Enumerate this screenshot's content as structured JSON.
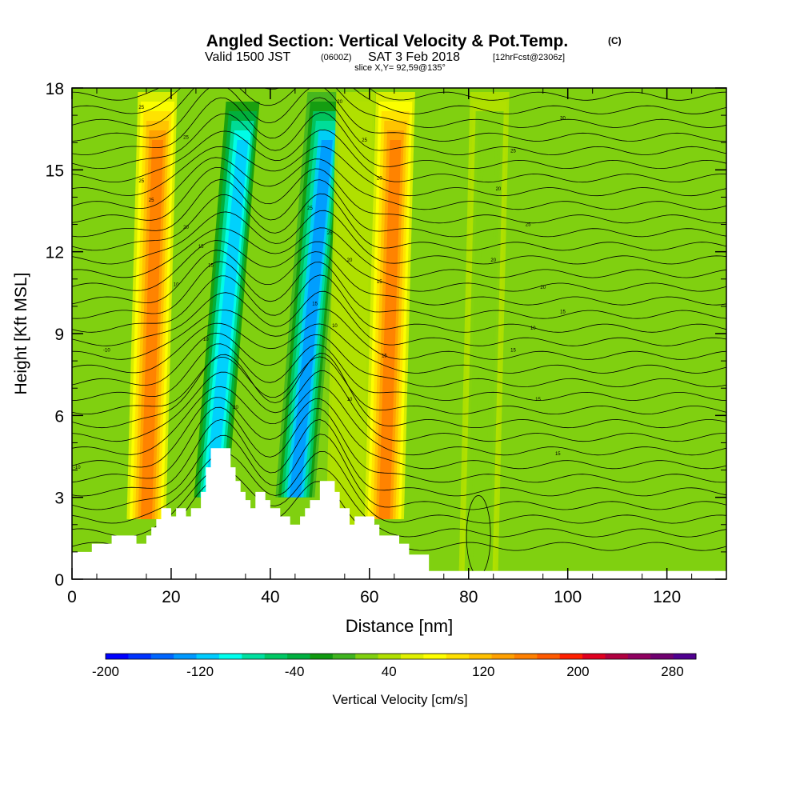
{
  "header": {
    "title": "Angled Section: Vertical Velocity & Pot.Temp.",
    "title_tag": "(C)",
    "valid_a": "Valid 1500 JST",
    "valid_b": "(0600Z)",
    "valid_c": "SAT 3 Feb 2018",
    "valid_d": "[12hrFcst@2306z]",
    "slice": "slice X,Y= 92,59@135°"
  },
  "chart_data": {
    "type": "heatmap",
    "title": "Angled Section: Vertical Velocity & Pot.Temp.",
    "xlabel": "Distance [nm]",
    "ylabel": "Height [Kft MSL]",
    "xlim": [
      0,
      132
    ],
    "ylim": [
      0,
      18
    ],
    "x_ticks": [
      "0",
      "20",
      "40",
      "60",
      "80",
      "100",
      "120"
    ],
    "y_ticks": [
      "0",
      "3",
      "6",
      "9",
      "12",
      "15",
      "18"
    ],
    "colorbar": {
      "label": "Vertical Velocity [cm/s]",
      "range": [
        -200,
        300
      ],
      "tick_labels": [
        "-200",
        "-120",
        "-40",
        "40",
        "120",
        "200",
        "280"
      ],
      "colors": [
        "#0000ff",
        "#0033ff",
        "#0066ff",
        "#0099ff",
        "#00ccff",
        "#00ffee",
        "#00e0a0",
        "#00c864",
        "#00b040",
        "#109a10",
        "#40b420",
        "#80d010",
        "#b0e000",
        "#e0f000",
        "#ffff00",
        "#ffe000",
        "#ffc000",
        "#ffa000",
        "#ff8000",
        "#ff5a00",
        "#ff2000",
        "#e00020",
        "#b00040",
        "#900060",
        "#700070",
        "#500090"
      ]
    },
    "velocity_bands": [
      {
        "x": 15,
        "peak_cm_s": 150
      },
      {
        "x": 28,
        "peak_cm_s": -120
      },
      {
        "x": 45,
        "peak_cm_s": -140
      },
      {
        "x": 55,
        "peak_cm_s": 40
      },
      {
        "x": 63,
        "peak_cm_s": 160
      },
      {
        "x": 82,
        "peak_cm_s": 20
      }
    ],
    "terrain_kft": [
      [
        0,
        1.0
      ],
      [
        4,
        1.3
      ],
      [
        8,
        1.6
      ],
      [
        13,
        1.3
      ],
      [
        15,
        1.6
      ],
      [
        16,
        1.9
      ],
      [
        17,
        2.2
      ],
      [
        18,
        2.6
      ],
      [
        20,
        2.3
      ],
      [
        21,
        2.6
      ],
      [
        23,
        2.3
      ],
      [
        24,
        2.6
      ],
      [
        26,
        3.2
      ],
      [
        27,
        4.1
      ],
      [
        28,
        4.8
      ],
      [
        31,
        4.8
      ],
      [
        32,
        4.1
      ],
      [
        33,
        3.6
      ],
      [
        34,
        3.2
      ],
      [
        35,
        2.9
      ],
      [
        36,
        2.6
      ],
      [
        37,
        3.2
      ],
      [
        38,
        3.2
      ],
      [
        39,
        2.9
      ],
      [
        40,
        2.6
      ],
      [
        42,
        2.3
      ],
      [
        44,
        2.0
      ],
      [
        46,
        2.3
      ],
      [
        47,
        2.6
      ],
      [
        48,
        2.9
      ],
      [
        50,
        3.6
      ],
      [
        53,
        3.2
      ],
      [
        54,
        2.6
      ],
      [
        56,
        2.0
      ],
      [
        57,
        2.3
      ],
      [
        60,
        2.3
      ],
      [
        61,
        2.0
      ],
      [
        62,
        1.6
      ],
      [
        66,
        1.3
      ],
      [
        68,
        0.9
      ],
      [
        72,
        0.3
      ],
      [
        132,
        0.3
      ]
    ],
    "isentrope_labels": [
      {
        "x": 1,
        "y": 4.1,
        "text": "-10"
      },
      {
        "x": 7,
        "y": 8.4,
        "text": "-10"
      },
      {
        "x": 14,
        "y": 17.3,
        "text": "25"
      },
      {
        "x": 23,
        "y": 16.2,
        "text": "25"
      },
      {
        "x": 14,
        "y": 14.6,
        "text": "25"
      },
      {
        "x": 16,
        "y": 13.9,
        "text": "25"
      },
      {
        "x": 23,
        "y": 12.9,
        "text": "20"
      },
      {
        "x": 26,
        "y": 12.2,
        "text": "15"
      },
      {
        "x": 28,
        "y": 11.5,
        "text": "15"
      },
      {
        "x": 21,
        "y": 10.8,
        "text": "10"
      },
      {
        "x": 27,
        "y": 8.8,
        "text": "10"
      },
      {
        "x": 33,
        "y": 6.3,
        "text": "20"
      },
      {
        "x": 54,
        "y": 17.5,
        "text": "20"
      },
      {
        "x": 59,
        "y": 16.1,
        "text": "25"
      },
      {
        "x": 62,
        "y": 14.7,
        "text": "20"
      },
      {
        "x": 48,
        "y": 13.6,
        "text": "25"
      },
      {
        "x": 52,
        "y": 12.7,
        "text": "25"
      },
      {
        "x": 56,
        "y": 11.7,
        "text": "20"
      },
      {
        "x": 62,
        "y": 10.9,
        "text": "15"
      },
      {
        "x": 49,
        "y": 10.1,
        "text": "15"
      },
      {
        "x": 53,
        "y": 9.3,
        "text": "10"
      },
      {
        "x": 63,
        "y": 8.2,
        "text": "15"
      },
      {
        "x": 56,
        "y": 6.6,
        "text": "10"
      },
      {
        "x": 99,
        "y": 16.9,
        "text": "30"
      },
      {
        "x": 89,
        "y": 15.7,
        "text": "25"
      },
      {
        "x": 86,
        "y": 14.3,
        "text": "20"
      },
      {
        "x": 92,
        "y": 13.0,
        "text": "25"
      },
      {
        "x": 85,
        "y": 11.7,
        "text": "20"
      },
      {
        "x": 95,
        "y": 10.7,
        "text": "20"
      },
      {
        "x": 99,
        "y": 9.8,
        "text": "15"
      },
      {
        "x": 93,
        "y": 9.2,
        "text": "10"
      },
      {
        "x": 89,
        "y": 8.4,
        "text": "15"
      },
      {
        "x": 94,
        "y": 6.6,
        "text": "15"
      },
      {
        "x": 98,
        "y": 4.6,
        "text": "15"
      }
    ]
  }
}
